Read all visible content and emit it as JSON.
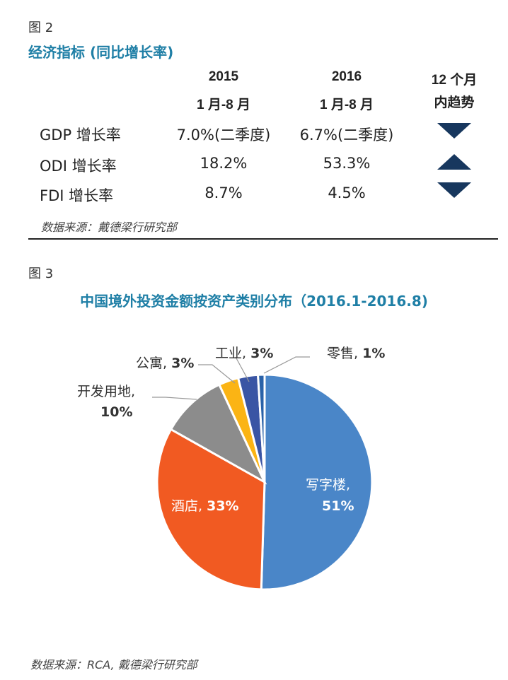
{
  "fig2": {
    "label": "图 2",
    "title": "经济指标 (同比增长率)",
    "col_headers": [
      {
        "line1": "2015",
        "line2": "1 月-8 月"
      },
      {
        "line1": "2016",
        "line2": "1 月-8 月"
      },
      {
        "line1": "12 个月",
        "line2": "内趋势"
      }
    ],
    "rows": [
      {
        "name": "GDP 增长率",
        "v2015": "7.0%(二季度)",
        "v2016": "6.7%(二季度)",
        "trend": "down"
      },
      {
        "name": "ODI  增长率",
        "v2015": "18.2%",
        "v2016": "53.3%",
        "trend": "up"
      },
      {
        "name": "FDI  增长率",
        "v2015": "8.7%",
        "v2016": "4.5%",
        "trend": "down"
      }
    ],
    "source": "数据来源：戴德梁行研究部",
    "trend_color": "#17375e"
  },
  "fig3": {
    "label": "图 3",
    "title": "中国境外投资金额按资产类别分布（2016.1-2016.8)",
    "source": "数据来源：RCA, 戴德梁行研究部"
  },
  "chart_data": {
    "type": "pie",
    "title": "中国境外投资金额按资产类别分布（2016.1-2016.8)",
    "slices": [
      {
        "name": "写字楼",
        "value": 51,
        "label_value": "51%",
        "color": "#4a86c8"
      },
      {
        "name": "酒店",
        "value": 33,
        "label_value": "33%",
        "color": "#f15a22"
      },
      {
        "name": "开发用地",
        "value": 10,
        "label_value": "10%",
        "color": "#8c8c8c"
      },
      {
        "name": "公寓",
        "value": 3,
        "label_value": "3%",
        "color": "#fbb414"
      },
      {
        "name": "工业",
        "value": 3,
        "label_value": "3%",
        "color": "#3a55a4"
      },
      {
        "name": "零售",
        "value": 1,
        "label_value": "1%",
        "color": "#2a62a8"
      }
    ]
  }
}
